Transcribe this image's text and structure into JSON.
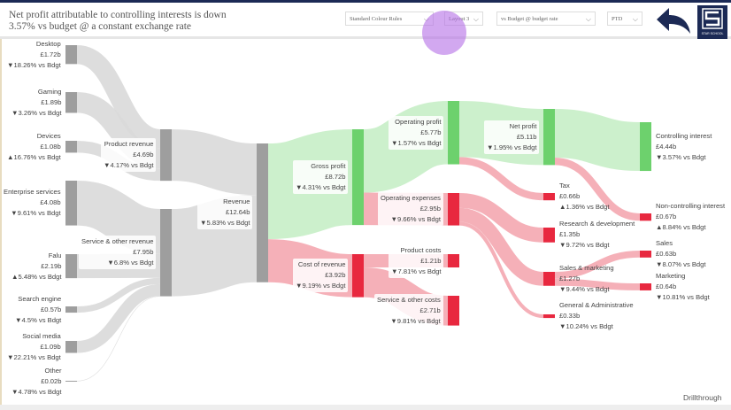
{
  "header": {
    "title_line1": "Net profit attributable to controlling interests is down",
    "title_line2": "3.57% vs budget @ a constant exchange rate",
    "dropdowns": [
      {
        "label": "Standard Colour Rules"
      },
      {
        "label": "Layout 3"
      },
      {
        "label": "vs Budget @ budget rate"
      },
      {
        "label": "PTD"
      }
    ],
    "back_icon": "back-arrow-icon",
    "logo_text": "STAR SCHOOL"
  },
  "colors": {
    "grey_node": "#9e9e9e",
    "grey_link": "#d9d9d9",
    "green_node": "#6dd16d",
    "green_link": "#c6eec6",
    "red_node": "#e8283f",
    "red_link": "#f4a7b0",
    "navy": "#1c2a55"
  },
  "nodes": [
    {
      "id": "desktop",
      "name": "Desktop",
      "value": "£1.72b",
      "delta": "▼18.26% vs Bdgt",
      "amount": 1.72,
      "color": "grey"
    },
    {
      "id": "gaming",
      "name": "Gaming",
      "value": "£1.89b",
      "delta": "▼3.26% vs Bdgt",
      "amount": 1.89,
      "color": "grey"
    },
    {
      "id": "devices",
      "name": "Devices",
      "value": "£1.08b",
      "delta": "▲16.76% vs Bdgt",
      "amount": 1.08,
      "color": "grey"
    },
    {
      "id": "enterprise",
      "name": "Enterprise services",
      "value": "£4.08b",
      "delta": "▼9.61% vs Bdgt",
      "amount": 4.08,
      "color": "grey"
    },
    {
      "id": "falu",
      "name": "Falu",
      "value": "£2.19b",
      "delta": "▲5.48% vs Bdgt",
      "amount": 2.19,
      "color": "grey"
    },
    {
      "id": "search",
      "name": "Search engine",
      "value": "£0.57b",
      "delta": "▼4.5% vs Bdgt",
      "amount": 0.57,
      "color": "grey"
    },
    {
      "id": "social",
      "name": "Social media",
      "value": "£1.09b",
      "delta": "▼22.21% vs Bdgt",
      "amount": 1.09,
      "color": "grey"
    },
    {
      "id": "other",
      "name": "Other",
      "value": "£0.02b",
      "delta": "▼4.78% vs Bdgt",
      "amount": 0.02,
      "color": "grey"
    },
    {
      "id": "prodrev",
      "name": "Product revenue",
      "value": "£4.69b",
      "delta": "▼4.17% vs Bdgt",
      "amount": 4.69,
      "color": "grey"
    },
    {
      "id": "servrev",
      "name": "Service & other revenue",
      "value": "£7.95b",
      "delta": "▼6.8% vs Bdgt",
      "amount": 7.95,
      "color": "grey"
    },
    {
      "id": "revenue",
      "name": "Revenue",
      "value": "£12.64b",
      "delta": "▼5.83% vs Bdgt",
      "amount": 12.64,
      "color": "grey"
    },
    {
      "id": "gross",
      "name": "Gross profit",
      "value": "£8.72b",
      "delta": "▼4.31% vs Bdgt",
      "amount": 8.72,
      "color": "green"
    },
    {
      "id": "cor",
      "name": "Cost of revenue",
      "value": "£3.92b",
      "delta": "▼9.19% vs Bdgt",
      "amount": 3.92,
      "color": "red"
    },
    {
      "id": "opprofit",
      "name": "Operating profit",
      "value": "£5.77b",
      "delta": "▼1.57% vs Bdgt",
      "amount": 5.77,
      "color": "green"
    },
    {
      "id": "opex",
      "name": "Operating expenses",
      "value": "£2.95b",
      "delta": "▼9.66% vs Bdgt",
      "amount": 2.95,
      "color": "red"
    },
    {
      "id": "prodcost",
      "name": "Product costs",
      "value": "£1.21b",
      "delta": "▼7.81% vs Bdgt",
      "amount": 1.21,
      "color": "red"
    },
    {
      "id": "servcost",
      "name": "Service & other costs",
      "value": "£2.71b",
      "delta": "▼9.81% vs Bdgt",
      "amount": 2.71,
      "color": "red"
    },
    {
      "id": "net",
      "name": "Net profit",
      "value": "£5.11b",
      "delta": "▼1.95% vs Bdgt",
      "amount": 5.11,
      "color": "green"
    },
    {
      "id": "tax",
      "name": "Tax",
      "value": "£0.66b",
      "delta": "▲1.36% vs Bdgt",
      "amount": 0.66,
      "color": "red"
    },
    {
      "id": "rnd",
      "name": "Research & development",
      "value": "£1.35b",
      "delta": "▼9.72% vs Bdgt",
      "amount": 1.35,
      "color": "red"
    },
    {
      "id": "snm",
      "name": "Sales & marketing",
      "value": "£1.27b",
      "delta": "▼9.44% vs Bdgt",
      "amount": 1.27,
      "color": "red"
    },
    {
      "id": "gna",
      "name": "General & Administrative",
      "value": "£0.33b",
      "delta": "▼10.24% vs Bdgt",
      "amount": 0.33,
      "color": "red"
    },
    {
      "id": "ctrl",
      "name": "Controlling interest",
      "value": "£4.44b",
      "delta": "▼3.57% vs Bdgt",
      "amount": 4.44,
      "color": "green"
    },
    {
      "id": "nonctrl",
      "name": "Non-controlling interest",
      "value": "£0.67b",
      "delta": "▲8.84% vs Bdgt",
      "amount": 0.67,
      "color": "red"
    },
    {
      "id": "sales",
      "name": "Sales",
      "value": "£0.63b",
      "delta": "▼8.07% vs Bdgt",
      "amount": 0.63,
      "color": "red"
    },
    {
      "id": "marketing",
      "name": "Marketing",
      "value": "£0.64b",
      "delta": "▼10.81% vs Bdgt",
      "amount": 0.64,
      "color": "red"
    }
  ],
  "links": [
    [
      "desktop",
      "prodrev",
      1.72
    ],
    [
      "gaming",
      "prodrev",
      1.89
    ],
    [
      "devices",
      "prodrev",
      1.08
    ],
    [
      "enterprise",
      "servrev",
      4.08
    ],
    [
      "falu",
      "servrev",
      2.19
    ],
    [
      "search",
      "servrev",
      0.57
    ],
    [
      "social",
      "servrev",
      1.09
    ],
    [
      "other",
      "servrev",
      0.02
    ],
    [
      "prodrev",
      "revenue",
      4.69
    ],
    [
      "servrev",
      "revenue",
      7.95
    ],
    [
      "revenue",
      "gross",
      8.72
    ],
    [
      "revenue",
      "cor",
      3.92
    ],
    [
      "gross",
      "opprofit",
      5.77
    ],
    [
      "gross",
      "opex",
      2.95
    ],
    [
      "cor",
      "prodcost",
      1.21
    ],
    [
      "cor",
      "servcost",
      2.71
    ],
    [
      "opprofit",
      "net",
      5.11
    ],
    [
      "opprofit",
      "tax",
      0.66
    ],
    [
      "opex",
      "rnd",
      1.35
    ],
    [
      "opex",
      "snm",
      1.27
    ],
    [
      "opex",
      "gna",
      0.33
    ],
    [
      "net",
      "ctrl",
      4.44
    ],
    [
      "net",
      "nonctrl",
      0.67
    ],
    [
      "snm",
      "sales",
      0.63
    ],
    [
      "snm",
      "marketing",
      0.64
    ]
  ],
  "footer": {
    "drillthrough": "Drillthrough"
  }
}
